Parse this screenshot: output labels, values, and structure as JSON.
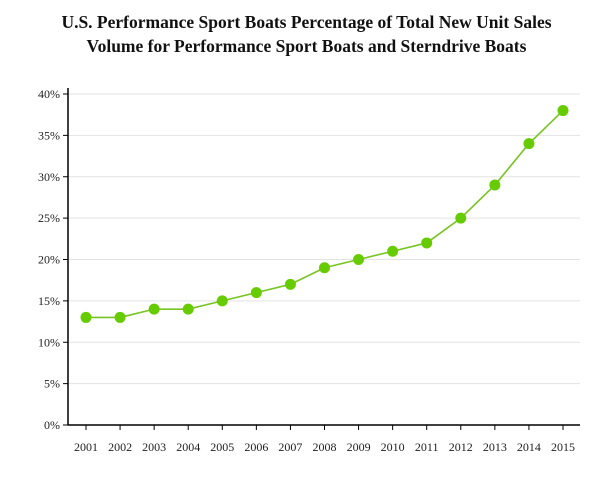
{
  "chart_data": {
    "type": "line",
    "title_lines": [
      "U.S. Performance Sport Boats Percentage of Total New Unit Sales",
      "Volume for Performance Sport Boats and Sterndrive Boats"
    ],
    "xlabel": "",
    "ylabel": "",
    "categories": [
      "2001",
      "2002",
      "2003",
      "2004",
      "2005",
      "2006",
      "2007",
      "2008",
      "2009",
      "2010",
      "2011",
      "2012",
      "2013",
      "2014",
      "2015"
    ],
    "series": [
      {
        "values": [
          13,
          13,
          14,
          14,
          15,
          16,
          17,
          19,
          20,
          21,
          22,
          25,
          29,
          34,
          38
        ]
      }
    ],
    "ylim": [
      0,
      40
    ],
    "yticks": [
      0,
      5,
      10,
      15,
      20,
      25,
      30,
      35,
      40
    ],
    "ytick_suffix": "%",
    "grid": true,
    "colors": {
      "line": "#77c422",
      "marker": "#66cc00",
      "grid": "#e3e3e3",
      "axis": "#000000"
    }
  }
}
